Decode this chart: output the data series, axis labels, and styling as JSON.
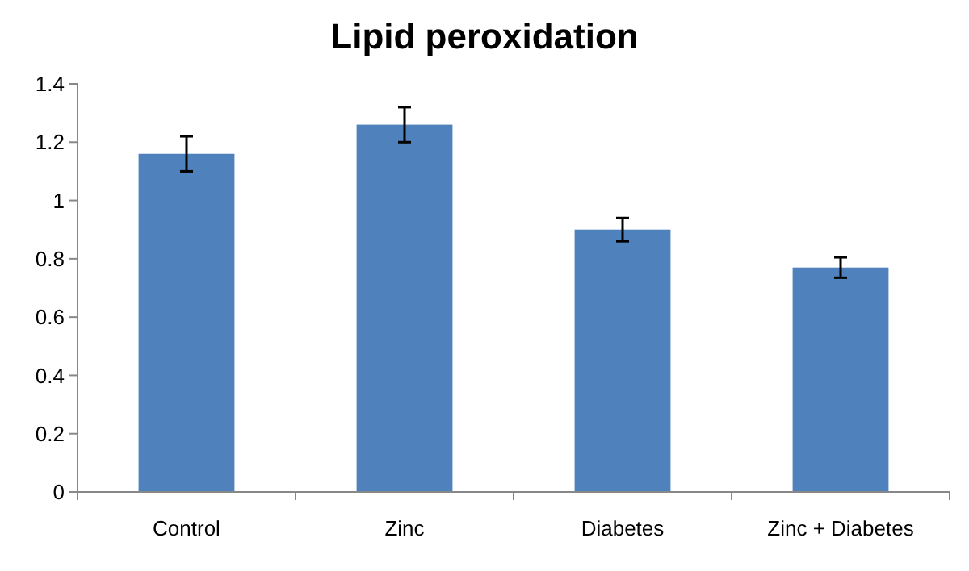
{
  "chart_data": {
    "type": "bar",
    "title": "Lipid peroxidation",
    "categories": [
      "Control",
      "Zinc",
      "Diabetes",
      "Zinc + Diabetes"
    ],
    "values": [
      1.16,
      1.26,
      0.9,
      0.77
    ],
    "errors": [
      0.06,
      0.06,
      0.04,
      0.035
    ],
    "color": "#4f81bd",
    "ylim": [
      0,
      1.4
    ],
    "yticks": [
      0,
      0.2,
      0.4,
      0.6,
      0.8,
      1,
      1.2,
      1.4
    ],
    "grid": false
  }
}
